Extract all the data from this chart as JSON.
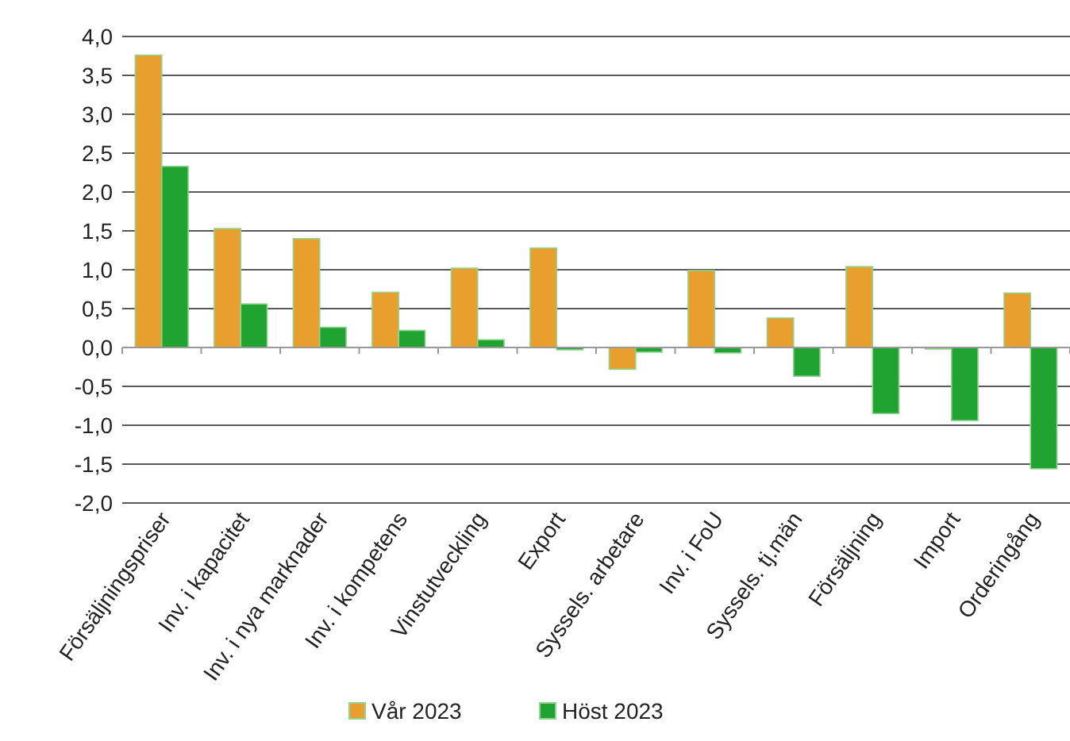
{
  "chart_data": {
    "type": "bar",
    "categories": [
      "Försäljningspriser",
      "Inv. i kapacitet",
      "Inv. i nya marknader",
      "Inv. i kompetens",
      "Vinstutveckling",
      "Export",
      "Syssels. arbetare",
      "Inv. i FoU",
      "Syssels. tj.män",
      "Försäljning",
      "Import",
      "Orderingång"
    ],
    "series": [
      {
        "name": "Vår 2023",
        "color": "#e99f2e",
        "values": [
          3.76,
          1.53,
          1.4,
          0.71,
          1.02,
          1.28,
          -0.28,
          0.99,
          0.38,
          1.04,
          -0.02,
          0.7
        ]
      },
      {
        "name": "Höst 2023",
        "color": "#21a332",
        "values": [
          2.33,
          0.56,
          0.26,
          0.22,
          0.1,
          -0.03,
          -0.06,
          -0.07,
          -0.37,
          -0.85,
          -0.94,
          -1.56
        ]
      }
    ],
    "ylim": [
      -2,
      4
    ],
    "yticks": [
      {
        "value": -2,
        "label": "-2,0"
      },
      {
        "value": -1.5,
        "label": "-1,5"
      },
      {
        "value": -1,
        "label": "-1,0"
      },
      {
        "value": -0.5,
        "label": "-0,5"
      },
      {
        "value": 0,
        "label": "0,0"
      },
      {
        "value": 0.5,
        "label": "0,5"
      },
      {
        "value": 1,
        "label": "1,0"
      },
      {
        "value": 1.5,
        "label": "1,5"
      },
      {
        "value": 2,
        "label": "2,0"
      },
      {
        "value": 2.5,
        "label": "2,5"
      },
      {
        "value": 3,
        "label": "3,0"
      },
      {
        "value": 3.5,
        "label": "3,5"
      },
      {
        "value": 4,
        "label": "4,0"
      }
    ],
    "grid": "y",
    "legend": "bottom"
  }
}
